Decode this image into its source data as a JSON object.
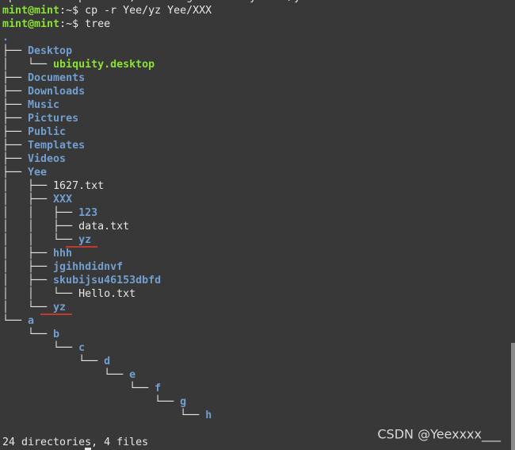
{
  "terminal": {
    "cut_line": "cp: -r not specified; omitting directory 'Yee/yz'",
    "commands": [
      {
        "user": "mint@mint",
        "rest": ":~$ cp -r Yee/yz Yee/XXX"
      },
      {
        "user": "mint@mint",
        "rest": ":~$ tree"
      }
    ],
    "root": ".",
    "lines": [
      {
        "prefix": "├── ",
        "name": "Desktop",
        "kind": "dir"
      },
      {
        "prefix": "│   └── ",
        "name": "ubiquity.desktop",
        "kind": "exec"
      },
      {
        "prefix": "├── ",
        "name": "Documents",
        "kind": "dir"
      },
      {
        "prefix": "├── ",
        "name": "Downloads",
        "kind": "dir"
      },
      {
        "prefix": "├── ",
        "name": "Music",
        "kind": "dir"
      },
      {
        "prefix": "├── ",
        "name": "Pictures",
        "kind": "dir"
      },
      {
        "prefix": "├── ",
        "name": "Public",
        "kind": "dir"
      },
      {
        "prefix": "├── ",
        "name": "Templates",
        "kind": "dir"
      },
      {
        "prefix": "├── ",
        "name": "Videos",
        "kind": "dir"
      },
      {
        "prefix": "├── ",
        "name": "Yee",
        "kind": "dir"
      },
      {
        "prefix": "│   ├── ",
        "name": "1627.txt",
        "kind": "file"
      },
      {
        "prefix": "│   ├── ",
        "name": "XXX",
        "kind": "dir"
      },
      {
        "prefix": "│   │   ├── ",
        "name": "123",
        "kind": "dir"
      },
      {
        "prefix": "│   │   ├── ",
        "name": "data.txt",
        "kind": "file"
      },
      {
        "prefix": "│   │   └── ",
        "name": "yz",
        "kind": "dir",
        "underlined": true
      },
      {
        "prefix": "│   ├── ",
        "name": "hhh",
        "kind": "dir"
      },
      {
        "prefix": "│   ├── ",
        "name": "jgihhdidnvf",
        "kind": "dir"
      },
      {
        "prefix": "│   ├── ",
        "name": "skubijsu46153dbfd",
        "kind": "dir"
      },
      {
        "prefix": "│   │   └── ",
        "name": "Hello.txt",
        "kind": "file"
      },
      {
        "prefix": "│   └── ",
        "name": "yz",
        "kind": "dir",
        "underlined": true
      },
      {
        "prefix": "└── ",
        "name": "a",
        "kind": "dir"
      },
      {
        "prefix": "    └── ",
        "name": "b",
        "kind": "dir"
      },
      {
        "prefix": "        └── ",
        "name": "c",
        "kind": "dir"
      },
      {
        "prefix": "            └── ",
        "name": "d",
        "kind": "dir"
      },
      {
        "prefix": "                └── ",
        "name": "e",
        "kind": "dir"
      },
      {
        "prefix": "                    └── ",
        "name": "f",
        "kind": "dir"
      },
      {
        "prefix": "                        └── ",
        "name": "g",
        "kind": "dir"
      },
      {
        "prefix": "                            └── ",
        "name": "h",
        "kind": "dir"
      }
    ],
    "summary": "24 directories, 4 files",
    "watermark": "CSDN @Yeexxxx___"
  }
}
